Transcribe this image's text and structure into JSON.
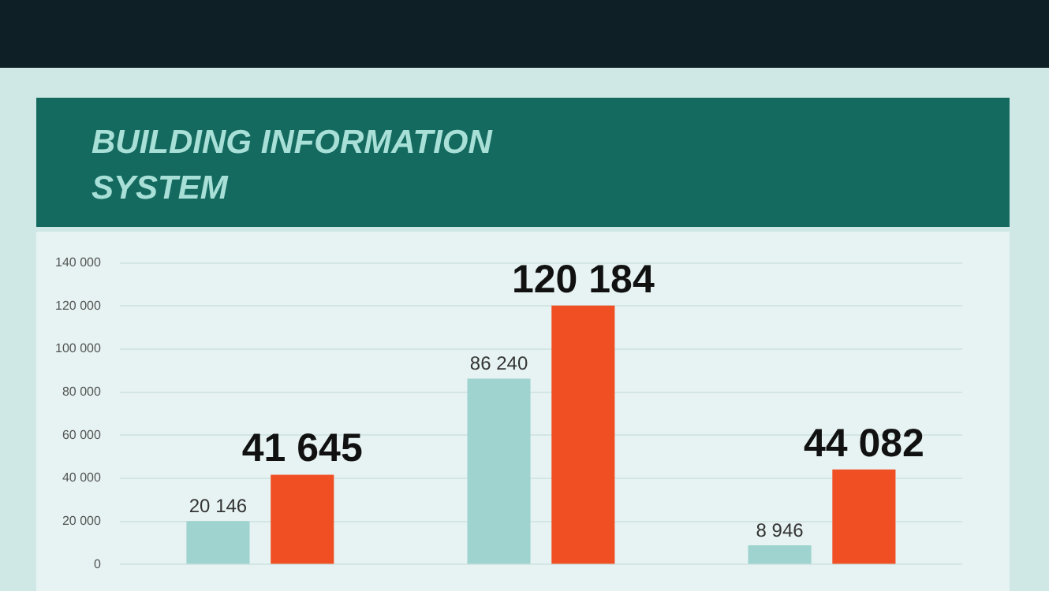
{
  "chart_data": {
    "type": "bar",
    "title": "BUILDING INFORMATION SYSTEM",
    "categories": [
      null,
      null,
      null
    ],
    "series": [
      {
        "color": "#9fd3cf",
        "values": [
          20146,
          86240,
          8946
        ],
        "value_labels": [
          "20 146",
          "86 240",
          "8 946"
        ]
      },
      {
        "color": "#f04e23",
        "values": [
          41645,
          120184,
          44082
        ],
        "value_labels": [
          "41 645",
          "120 184",
          "44 082"
        ]
      }
    ],
    "ylim": [
      0,
      140000
    ],
    "yticks": [
      {
        "value": 0,
        "label": "0"
      },
      {
        "value": 20000,
        "label": "20 000"
      },
      {
        "value": 40000,
        "label": "40 000"
      },
      {
        "value": 60000,
        "label": "60 000"
      },
      {
        "value": 80000,
        "label": "80 000"
      },
      {
        "value": 100000,
        "label": "100 000"
      },
      {
        "value": 120000,
        "label": "120 000"
      },
      {
        "value": 140000,
        "label": "140 000"
      }
    ],
    "grid": "y",
    "legend": false
  }
}
